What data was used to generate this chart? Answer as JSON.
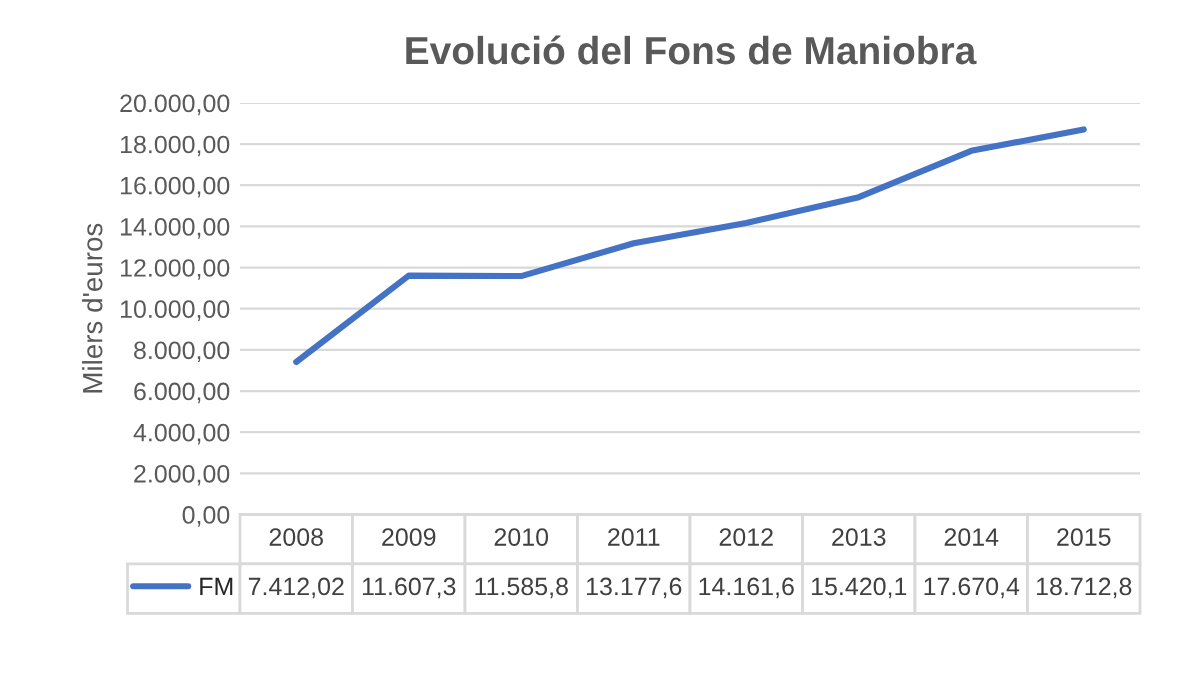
{
  "chart_data": {
    "type": "line",
    "title": "Evolució del Fons de Maniobra",
    "ylabel": "Milers d'euros",
    "categories": [
      "2008",
      "2009",
      "2010",
      "2011",
      "2012",
      "2013",
      "2014",
      "2015"
    ],
    "series": [
      {
        "name": "FM",
        "color": "#4472c4",
        "values": [
          7412.02,
          11607.3,
          11585.8,
          13177.6,
          14161.6,
          15420.1,
          17670.4,
          18712.8
        ],
        "value_labels": [
          "7.412,02",
          "11.607,3",
          "11.585,8",
          "13.177,6",
          "14.161,6",
          "15.420,1",
          "17.670,4",
          "18.712,8"
        ]
      }
    ],
    "ylim": [
      0,
      20000
    ],
    "yticks": [
      {
        "value": 0,
        "label": "0,00"
      },
      {
        "value": 2000,
        "label": "2.000,00"
      },
      {
        "value": 4000,
        "label": "4.000,00"
      },
      {
        "value": 6000,
        "label": "6.000,00"
      },
      {
        "value": 8000,
        "label": "8.000,00"
      },
      {
        "value": 10000,
        "label": "10.000,00"
      },
      {
        "value": 12000,
        "label": "12.000,00"
      },
      {
        "value": 14000,
        "label": "14.000,00"
      },
      {
        "value": 16000,
        "label": "16.000,00"
      },
      {
        "value": 18000,
        "label": "18.000,00"
      },
      {
        "value": 20000,
        "label": "20.000,00"
      }
    ],
    "grid": "y",
    "legend": "bottom",
    "tick_labels": "y",
    "marker": "none",
    "line_style": "solid"
  }
}
